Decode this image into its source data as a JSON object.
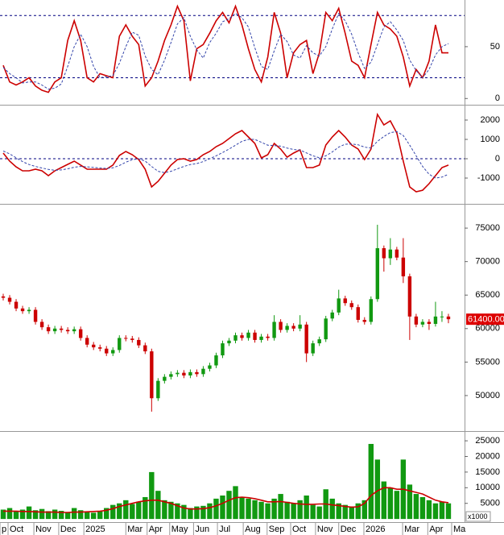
{
  "chart_data": [
    {
      "type": "line",
      "xlim": [
        -0.5,
        71.5
      ],
      "ylim": [
        -6,
        95
      ],
      "yticks": [
        0,
        50
      ],
      "ref_lines": [
        20,
        80
      ],
      "series": [
        {
          "color": "#cc0000",
          "dash": false,
          "values": [
            32,
            16,
            13,
            16,
            20,
            12,
            8,
            6,
            16,
            20,
            56,
            75,
            56,
            20,
            16,
            24,
            22,
            20,
            60,
            71,
            60,
            52,
            12,
            20,
            36,
            56,
            71,
            89,
            75,
            17,
            48,
            52,
            63,
            75,
            83,
            73,
            89,
            71,
            48,
            28,
            16,
            40,
            83,
            63,
            20,
            44,
            52,
            56,
            24,
            44,
            83,
            75,
            87,
            63,
            36,
            32,
            20,
            52,
            83,
            71,
            67,
            60,
            40,
            12,
            28,
            20,
            36,
            71,
            44,
            44
          ]
        },
        {
          "color": "#3344aa",
          "dash": true,
          "values": [
            30,
            24,
            20,
            15,
            16,
            16,
            13,
            9,
            10,
            14,
            31,
            50,
            62,
            50,
            31,
            20,
            21,
            22,
            34,
            50,
            64,
            61,
            41,
            28,
            23,
            37,
            54,
            72,
            78,
            60,
            47,
            39,
            54,
            63,
            74,
            77,
            82,
            78,
            69,
            49,
            31,
            28,
            46,
            62,
            55,
            42,
            39,
            51,
            44,
            41,
            50,
            67,
            82,
            75,
            62,
            44,
            29,
            35,
            52,
            69,
            74,
            66,
            56,
            37,
            27,
            20,
            28,
            42,
            50,
            53
          ]
        }
      ]
    },
    {
      "type": "line",
      "xlim": [
        -0.5,
        71.5
      ],
      "ylim": [
        -2333,
        2750
      ],
      "yticks": [
        2000,
        1000,
        0,
        -1000
      ],
      "ref_lines": [
        0
      ],
      "series": [
        {
          "color": "#cc0000",
          "dash": false,
          "values": [
            290,
            -125,
            -420,
            -625,
            -625,
            -540,
            -625,
            -875,
            -625,
            -460,
            -290,
            -125,
            -330,
            -540,
            -540,
            -540,
            -540,
            -330,
            170,
            375,
            210,
            -40,
            -540,
            -1460,
            -1170,
            -750,
            -330,
            -40,
            0,
            -125,
            -40,
            210,
            375,
            625,
            790,
            1040,
            1290,
            1460,
            1125,
            790,
            40,
            210,
            790,
            500,
            80,
            290,
            460,
            -460,
            -460,
            -330,
            710,
            1125,
            1460,
            1125,
            710,
            500,
            -40,
            500,
            2290,
            1750,
            1960,
            1330,
            -125,
            -1460,
            -1710,
            -1630,
            -1290,
            -875,
            -460,
            -330
          ]
        },
        {
          "color": "#3344aa",
          "dash": true,
          "values": [
            400,
            250,
            50,
            -150,
            -300,
            -400,
            -480,
            -550,
            -600,
            -580,
            -520,
            -440,
            -400,
            -420,
            -450,
            -480,
            -500,
            -470,
            -350,
            -180,
            -50,
            0,
            -120,
            -400,
            -650,
            -720,
            -650,
            -520,
            -400,
            -300,
            -250,
            -150,
            0,
            150,
            320,
            500,
            700,
            900,
            1000,
            1000,
            850,
            700,
            680,
            650,
            550,
            480,
            450,
            300,
            150,
            50,
            150,
            350,
            600,
            750,
            760,
            720,
            600,
            550,
            900,
            1150,
            1350,
            1400,
            1200,
            700,
            150,
            -400,
            -800,
            -1000,
            -950,
            -800
          ]
        }
      ]
    },
    {
      "type": "candlestick",
      "xlim": [
        -0.5,
        71.5
      ],
      "ylim": [
        44700,
        78500
      ],
      "yticks": [
        75000,
        70000,
        65000,
        60000,
        55000,
        50000
      ],
      "up_color": "#119911",
      "down_color": "#cc0000",
      "last_price_label": "61400.00",
      "open": [
        64800,
        64600,
        64000,
        63000,
        62600,
        62800,
        61000,
        60200,
        59600,
        60000,
        59800,
        59600,
        59900,
        58600,
        57600,
        57200,
        57000,
        56300,
        56800,
        58600,
        58500,
        58300,
        57500,
        56600,
        49600,
        52200,
        52800,
        53200,
        53400,
        53000,
        53500,
        53200,
        54000,
        54500,
        56000,
        57800,
        58200,
        59000,
        58600,
        59400,
        58300,
        58800,
        58600,
        61000,
        59800,
        60400,
        60000,
        60600,
        56300,
        57800,
        58400,
        61500,
        62400,
        64500,
        63800,
        63200,
        61300,
        61000,
        64400,
        72000,
        70500,
        71800,
        70600,
        67800,
        61800,
        60600,
        61000,
        60700,
        61800,
        61800
      ],
      "high": [
        65200,
        65000,
        64400,
        63400,
        63200,
        63200,
        61400,
        60600,
        60400,
        60400,
        60200,
        60300,
        60300,
        59000,
        58000,
        57600,
        57400,
        57200,
        59000,
        59000,
        58900,
        58700,
        57900,
        57000,
        52600,
        53200,
        53600,
        53800,
        53800,
        53900,
        53900,
        54400,
        54900,
        56400,
        58200,
        58600,
        59400,
        59400,
        59800,
        59800,
        59200,
        59200,
        62000,
        61400,
        60800,
        60800,
        62000,
        61000,
        58200,
        58800,
        61900,
        62800,
        65800,
        64900,
        64200,
        63600,
        61700,
        64800,
        75500,
        72400,
        73500,
        72200,
        73500,
        68200,
        62200,
        61400,
        61400,
        64000,
        62600,
        62200
      ],
      "low": [
        64200,
        63600,
        62600,
        62200,
        62200,
        60600,
        59800,
        59200,
        59200,
        59400,
        59200,
        59200,
        58200,
        57200,
        56800,
        56600,
        55900,
        55900,
        56400,
        58100,
        57900,
        57100,
        56200,
        47600,
        49200,
        51800,
        52400,
        52800,
        52600,
        52600,
        52800,
        52800,
        53600,
        54100,
        55600,
        57400,
        57800,
        58200,
        58200,
        57900,
        57900,
        58200,
        58200,
        59400,
        59400,
        59600,
        59600,
        55000,
        55900,
        57400,
        58000,
        61100,
        62000,
        63400,
        62800,
        60900,
        60600,
        60600,
        64000,
        68500,
        69500,
        70200,
        66800,
        58300,
        60200,
        60200,
        59800,
        60300,
        61000,
        60800
      ],
      "close": [
        64600,
        64000,
        63000,
        62600,
        62800,
        61000,
        60200,
        59600,
        60000,
        59800,
        59600,
        59900,
        58600,
        57600,
        57200,
        57000,
        56300,
        56800,
        58600,
        58500,
        58300,
        57500,
        56600,
        49600,
        52200,
        52800,
        53200,
        53400,
        53000,
        53500,
        53200,
        54000,
        54500,
        56000,
        57800,
        58200,
        59000,
        58600,
        59400,
        58300,
        58800,
        58600,
        61000,
        59800,
        60400,
        60000,
        60600,
        56300,
        57800,
        58400,
        61500,
        62400,
        64500,
        63800,
        63200,
        61300,
        61000,
        64400,
        72000,
        70500,
        71800,
        70600,
        67800,
        61800,
        60600,
        61000,
        60700,
        61800,
        61800,
        61400
      ]
    },
    {
      "type": "bar",
      "xlim": [
        -0.5,
        71.5
      ],
      "ylim": [
        -1000,
        27600
      ],
      "yticks": [
        25000,
        20000,
        15000,
        10000,
        5000
      ],
      "unit_label": "x1000",
      "color": "#119911",
      "values": [
        3000,
        3500,
        2500,
        3000,
        4000,
        2800,
        3200,
        2500,
        3000,
        2600,
        2200,
        3500,
        2800,
        2400,
        2000,
        2600,
        3500,
        4500,
        5000,
        6000,
        4800,
        5500,
        7000,
        15000,
        9000,
        6000,
        5500,
        5000,
        4500,
        3500,
        4000,
        4200,
        5000,
        6500,
        7500,
        9000,
        10500,
        7000,
        6500,
        6000,
        5500,
        5000,
        6500,
        8000,
        5500,
        5000,
        6000,
        7500,
        4500,
        4000,
        9500,
        6500,
        5000,
        4500,
        4000,
        5000,
        6000,
        24000,
        19000,
        12000,
        10000,
        9000,
        19000,
        11000,
        8000,
        7000,
        6000,
        5000,
        5500,
        5000
      ],
      "series": [
        {
          "color": "#cc0000",
          "dash": false,
          "values": [
            2500,
            2500,
            2500,
            2400,
            2400,
            2300,
            2200,
            2200,
            2200,
            2100,
            2100,
            2200,
            2200,
            2300,
            2400,
            2500,
            2800,
            3300,
            4000,
            4500,
            5000,
            5500,
            5800,
            6000,
            6000,
            5500,
            5000,
            4200,
            3500,
            3200,
            3200,
            3300,
            3600,
            4200,
            5000,
            6000,
            6800,
            7000,
            6800,
            6500,
            6000,
            5500,
            5500,
            5600,
            5300,
            5000,
            4800,
            4700,
            4700,
            4800,
            4800,
            4500,
            4300,
            4000,
            3800,
            3900,
            5000,
            7500,
            9000,
            10000,
            10000,
            9500,
            9500,
            9000,
            8500,
            8000,
            7000,
            6000,
            5500,
            5200
          ]
        }
      ],
      "xticks": [
        {
          "value": -0.5,
          "label": "p"
        },
        {
          "value": 0.75,
          "label": "Oct"
        },
        {
          "value": 4.75,
          "label": "Nov"
        },
        {
          "value": 8.6,
          "label": "Dec"
        },
        {
          "value": 12.5,
          "label": "2025"
        },
        {
          "value": 19,
          "label": "Mar"
        },
        {
          "value": 22.3,
          "label": "Apr"
        },
        {
          "value": 25.8,
          "label": "May"
        },
        {
          "value": 29.5,
          "label": "Jun"
        },
        {
          "value": 33.2,
          "label": "Jul"
        },
        {
          "value": 37.2,
          "label": "Aug"
        },
        {
          "value": 40.9,
          "label": "Sep"
        },
        {
          "value": 44.55,
          "label": "Oct"
        },
        {
          "value": 48.4,
          "label": "Nov"
        },
        {
          "value": 52,
          "label": "Dec"
        },
        {
          "value": 55.9,
          "label": "2026"
        },
        {
          "value": 61.9,
          "label": "Mar"
        },
        {
          "value": 65.8,
          "label": "Apr"
        },
        {
          "value": 69.5,
          "label": "Ma"
        }
      ]
    }
  ]
}
